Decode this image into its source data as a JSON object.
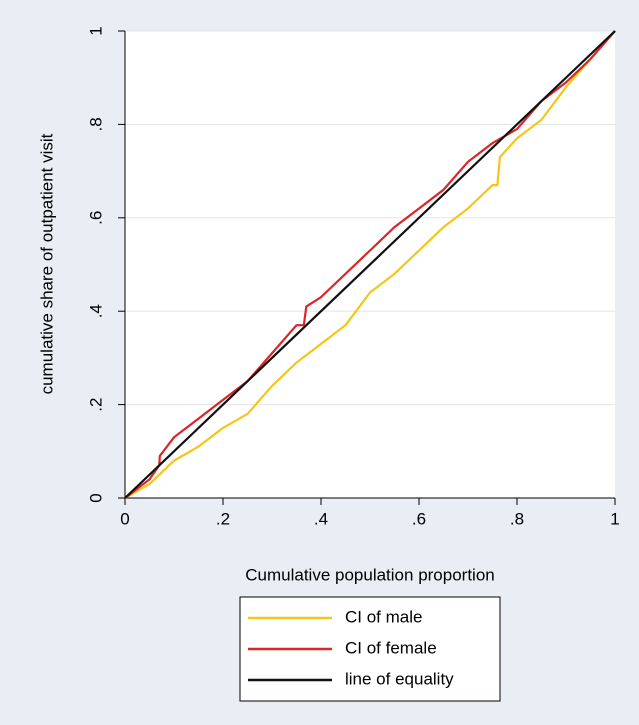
{
  "chart_data": {
    "type": "line",
    "x_label": "Cumulative population proportion",
    "y_label": "cumulative share of outpatient visit",
    "xlim": [
      0,
      1
    ],
    "ylim": [
      0,
      1
    ],
    "xticks": [
      0,
      {
        "value": 0.2,
        "label": ".2"
      },
      {
        "value": 0.4,
        "label": ".4"
      },
      {
        "value": 0.6,
        "label": ".6"
      },
      {
        "value": 0.8,
        "label": ".8"
      },
      1
    ],
    "yticks": [
      0,
      {
        "value": 0.2,
        "label": ".2"
      },
      {
        "value": 0.4,
        "label": ".4"
      },
      {
        "value": 0.6,
        "label": ".6"
      },
      {
        "value": 0.8,
        "label": ".8"
      },
      1
    ],
    "grid": true,
    "legend": "bottom",
    "series": [
      {
        "name": "CI of male",
        "color": "#f5c518",
        "x": [
          0,
          0.05,
          0.1,
          0.15,
          0.2,
          0.25,
          0.3,
          0.35,
          0.4,
          0.45,
          0.5,
          0.55,
          0.6,
          0.65,
          0.7,
          0.75,
          0.76,
          0.765,
          0.8,
          0.85,
          0.9,
          0.95,
          1
        ],
        "values": [
          0,
          0.03,
          0.08,
          0.11,
          0.15,
          0.18,
          0.24,
          0.29,
          0.33,
          0.37,
          0.44,
          0.48,
          0.53,
          0.58,
          0.62,
          0.67,
          0.67,
          0.73,
          0.77,
          0.81,
          0.88,
          0.94,
          1
        ]
      },
      {
        "name": "CI of female",
        "color": "#d9262b",
        "x": [
          0,
          0.05,
          0.07,
          0.071,
          0.1,
          0.15,
          0.2,
          0.25,
          0.3,
          0.35,
          0.365,
          0.37,
          0.4,
          0.45,
          0.5,
          0.55,
          0.6,
          0.65,
          0.7,
          0.75,
          0.8,
          0.85,
          0.9,
          0.95,
          1
        ],
        "values": [
          0,
          0.04,
          0.07,
          0.09,
          0.13,
          0.17,
          0.21,
          0.25,
          0.31,
          0.37,
          0.37,
          0.41,
          0.43,
          0.48,
          0.53,
          0.58,
          0.62,
          0.66,
          0.72,
          0.76,
          0.79,
          0.85,
          0.89,
          0.94,
          1
        ]
      },
      {
        "name": "line of equality",
        "color": "#111111",
        "x": [
          0,
          1
        ],
        "values": [
          0,
          1
        ]
      }
    ]
  }
}
